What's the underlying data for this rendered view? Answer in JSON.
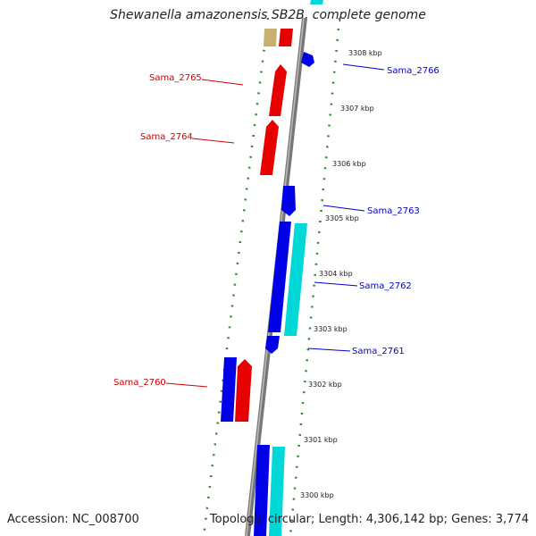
{
  "title": "Shewanella amazonensis SB2B, complete genome",
  "accession": "Accession: NC_008700",
  "summary": "Topology: circular; Length: 4,306,142 bp; Genes: 3,774",
  "colors": {
    "forward": "#e60000",
    "reverse": "#0000e6",
    "rna": "#00d8d8",
    "other": "#c8b070",
    "dots": "#2e8b2e",
    "backbone": "#888888"
  },
  "scale_labels": [
    "3308 kbp",
    "3307 kbp",
    "3306 kbp",
    "3305 kbp",
    "3304 kbp",
    "3303 kbp",
    "3302 kbp",
    "3301 kbp",
    "3300 kbp"
  ],
  "genes": [
    {
      "name": "Sama_2766",
      "color": "#0000cc"
    },
    {
      "name": "Sama_2765",
      "color": "#cc0000"
    },
    {
      "name": "Sama_2764",
      "color": "#cc0000"
    },
    {
      "name": "Sama_2763",
      "color": "#0000cc"
    },
    {
      "name": "Sama_2762",
      "color": "#0000cc"
    },
    {
      "name": "Sama_2761",
      "color": "#0000cc"
    },
    {
      "name": "Sama_2760",
      "color": "#cc0000"
    }
  ]
}
